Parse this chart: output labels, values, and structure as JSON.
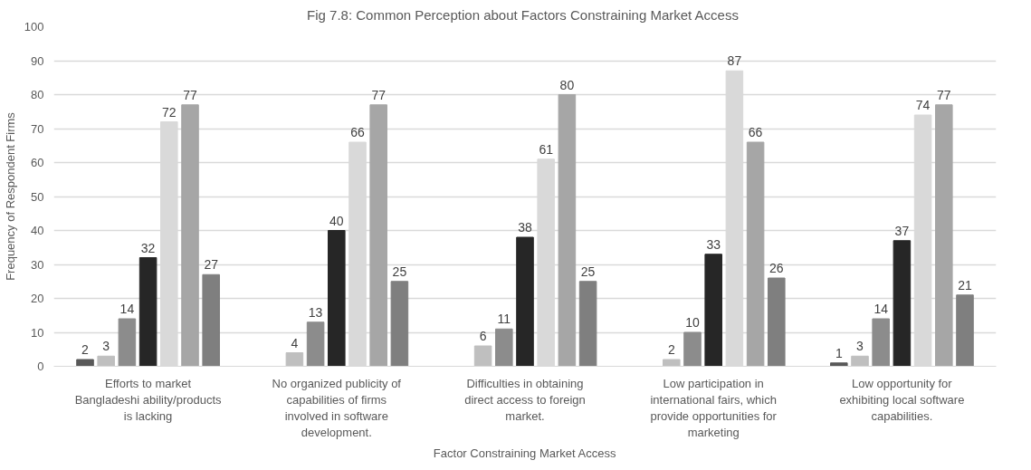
{
  "chart_data": {
    "type": "bar",
    "title": "Fig 7.8:  Common Perception about Factors Constraining Market Access",
    "xlabel": "Factor Constraining Market Access",
    "ylabel": "Frequency of Respondent Firms",
    "categories": [
      "Efforts to market Bangladeshi ability/products is lacking",
      "No organized publicity of capabilities of firms involved in software development.",
      "Difficulties in obtaining direct access to foreign market.",
      "Low participation in international fairs, which provide opportunities for marketing",
      "Low opportunity for exhibiting local software capabilities."
    ],
    "series": [
      {
        "color": "#595959",
        "values": [
          2,
          null,
          null,
          null,
          1
        ]
      },
      {
        "color": "#bfbfbf",
        "values": [
          3,
          4,
          6,
          2,
          3
        ]
      },
      {
        "color": "#8c8c8c",
        "values": [
          14,
          13,
          11,
          10,
          14
        ]
      },
      {
        "color": "#262626",
        "values": [
          32,
          40,
          38,
          33,
          37
        ]
      },
      {
        "color": "#d9d9d9",
        "values": [
          72,
          66,
          61,
          87,
          74
        ]
      },
      {
        "color": "#a6a6a6",
        "values": [
          77,
          77,
          80,
          66,
          77
        ]
      },
      {
        "color": "#7f7f7f",
        "values": [
          27,
          25,
          25,
          26,
          21
        ]
      }
    ],
    "ylim": [
      0,
      100
    ],
    "yticks": [
      0,
      10,
      20,
      30,
      40,
      50,
      60,
      70,
      80,
      90,
      100
    ],
    "grid": "y",
    "data_labels": true
  }
}
